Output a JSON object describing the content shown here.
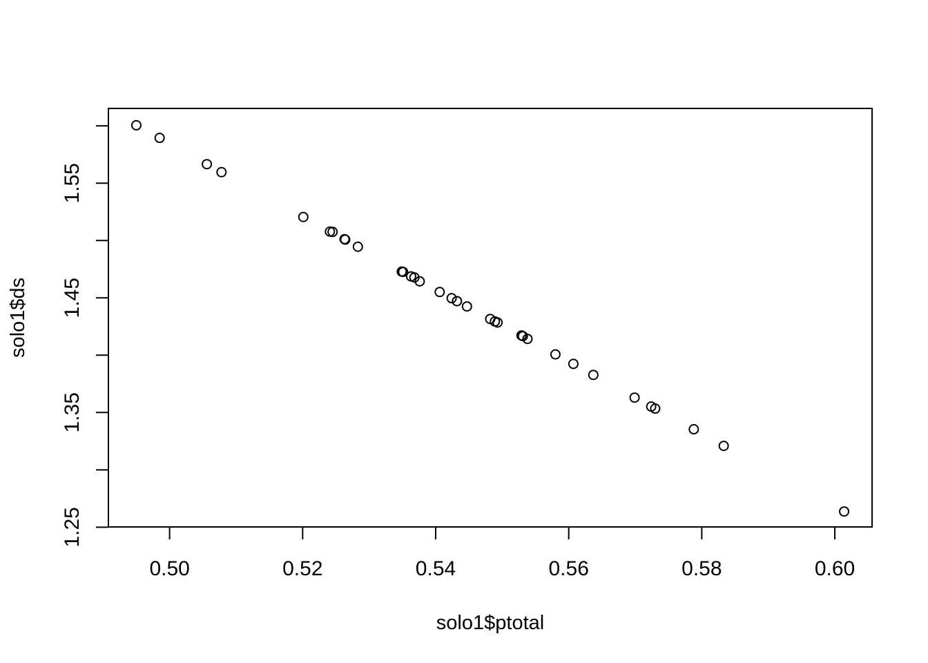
{
  "chart_data": {
    "type": "scatter",
    "title": "",
    "xlabel": "solo1$ptotal",
    "ylabel": "solo1$ds",
    "xlim": [
      0.4908,
      0.6056
    ],
    "ylim": [
      1.2502,
      1.6152
    ],
    "xticks": [
      0.5,
      0.52,
      0.54,
      0.56,
      0.58,
      0.6
    ],
    "xtick_labels": [
      "0.50",
      "0.52",
      "0.54",
      "0.56",
      "0.58",
      "0.60"
    ],
    "yticks": [
      1.25,
      1.3,
      1.35,
      1.4,
      1.45,
      1.5,
      1.55,
      1.6
    ],
    "ytick_labels": [
      "1.25",
      "",
      "1.35",
      "",
      "1.45",
      "",
      "1.55",
      ""
    ],
    "grid": false,
    "legend": "none",
    "marker": "open-circle",
    "color": "#000000",
    "points": [
      {
        "x": 0.495,
        "y": 1.6005
      },
      {
        "x": 0.4985,
        "y": 1.5895
      },
      {
        "x": 0.5056,
        "y": 1.5666
      },
      {
        "x": 0.5078,
        "y": 1.5596
      },
      {
        "x": 0.5201,
        "y": 1.5205
      },
      {
        "x": 0.5241,
        "y": 1.5078
      },
      {
        "x": 0.5245,
        "y": 1.5075
      },
      {
        "x": 0.5263,
        "y": 1.5012
      },
      {
        "x": 0.5264,
        "y": 1.5008
      },
      {
        "x": 0.5283,
        "y": 1.4946
      },
      {
        "x": 0.5349,
        "y": 1.4729
      },
      {
        "x": 0.5351,
        "y": 1.4726
      },
      {
        "x": 0.5363,
        "y": 1.4687
      },
      {
        "x": 0.5368,
        "y": 1.4678
      },
      {
        "x": 0.5376,
        "y": 1.4644
      },
      {
        "x": 0.5406,
        "y": 1.4551
      },
      {
        "x": 0.5424,
        "y": 1.4497
      },
      {
        "x": 0.5432,
        "y": 1.4471
      },
      {
        "x": 0.5447,
        "y": 1.4425
      },
      {
        "x": 0.5482,
        "y": 1.4316
      },
      {
        "x": 0.5489,
        "y": 1.4294
      },
      {
        "x": 0.5493,
        "y": 1.4285
      },
      {
        "x": 0.5529,
        "y": 1.4172
      },
      {
        "x": 0.5531,
        "y": 1.4166
      },
      {
        "x": 0.5538,
        "y": 1.4142
      },
      {
        "x": 0.558,
        "y": 1.4007
      },
      {
        "x": 0.5607,
        "y": 1.3924
      },
      {
        "x": 0.5637,
        "y": 1.3828
      },
      {
        "x": 0.5699,
        "y": 1.363
      },
      {
        "x": 0.5724,
        "y": 1.3552
      },
      {
        "x": 0.573,
        "y": 1.3534
      },
      {
        "x": 0.5788,
        "y": 1.3354
      },
      {
        "x": 0.5833,
        "y": 1.3209
      },
      {
        "x": 0.6014,
        "y": 1.2637
      }
    ]
  }
}
